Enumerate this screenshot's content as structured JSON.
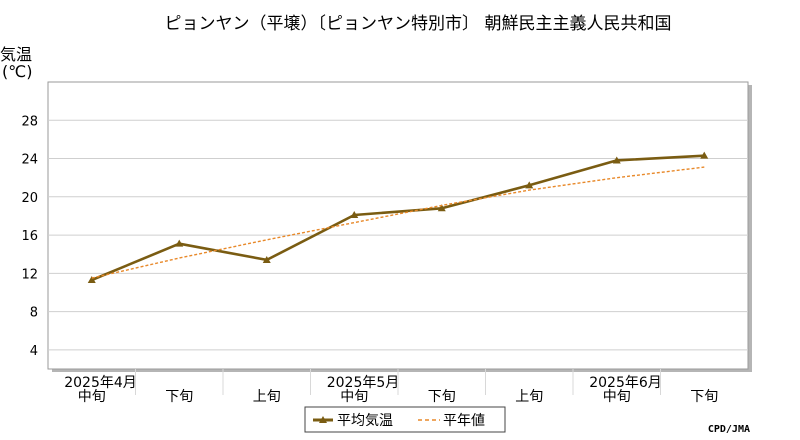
{
  "chart_data": {
    "type": "line",
    "title": "ピョンヤン（平壌）〔ピョンヤン特別市〕 朝鮮民主主義人民共和国",
    "ylabel_line1": "気温",
    "ylabel_line2": "(℃)",
    "ylim": [
      2,
      32
    ],
    "yticks": [
      4,
      8,
      12,
      16,
      20,
      24,
      28
    ],
    "grid": true,
    "categories": [
      "中旬",
      "下旬",
      "上旬",
      "中旬",
      "下旬",
      "上旬",
      "中旬",
      "下旬"
    ],
    "month_labels": [
      {
        "label": "2025年4月",
        "at": 0
      },
      {
        "label": "2025年5月",
        "at": 3
      },
      {
        "label": "2025年6月",
        "at": 6
      }
    ],
    "series": [
      {
        "name": "平均気温",
        "color": "#7a5c12",
        "style": "solid-marker",
        "values": [
          11.3,
          15.1,
          13.4,
          18.1,
          18.8,
          21.2,
          23.8,
          24.3
        ]
      },
      {
        "name": "平年値",
        "color": "#e8892a",
        "style": "dashed",
        "values": [
          11.5,
          13.6,
          15.5,
          17.3,
          19.1,
          20.7,
          22.0,
          23.1
        ]
      }
    ],
    "legend_position": "bottom-center",
    "credit": "CPD/JMA"
  }
}
